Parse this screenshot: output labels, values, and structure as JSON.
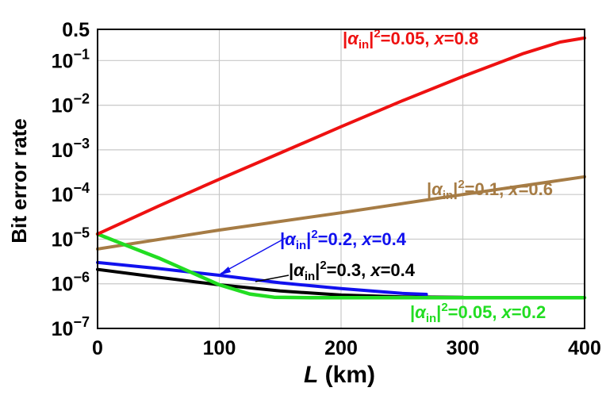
{
  "chart_data": {
    "type": "line",
    "title": "",
    "xlabel": "L (km)",
    "xlabel_parts": {
      "var": "L",
      "unit": " (km)"
    },
    "ylabel": "Bit error rate",
    "xlim": [
      0,
      400
    ],
    "ylim": [
      1e-07,
      0.5
    ],
    "yscale": "log",
    "grid": true,
    "xticks": [
      0,
      100,
      200,
      300,
      400
    ],
    "yticks": [
      {
        "value": 0.5,
        "label": "0.5"
      },
      {
        "value": 0.1,
        "base": "10",
        "exp": "−1"
      },
      {
        "value": 0.01,
        "base": "10",
        "exp": "−2"
      },
      {
        "value": 0.001,
        "base": "10",
        "exp": "−3"
      },
      {
        "value": 0.0001,
        "base": "10",
        "exp": "−4"
      },
      {
        "value": 1e-05,
        "base": "10",
        "exp": "−5"
      },
      {
        "value": 1e-06,
        "base": "10",
        "exp": "−6"
      },
      {
        "value": 1e-07,
        "base": "10",
        "exp": "−7"
      }
    ],
    "series": [
      {
        "name": "|αin|2=0.05, x=0.8",
        "label": {
          "val1": "0.05",
          "val2": "0.8"
        },
        "color": "#ee1111",
        "x": [
          0,
          50,
          100,
          150,
          200,
          250,
          300,
          350,
          380,
          400
        ],
        "y": [
          1.3e-05,
          5.5e-05,
          0.00022,
          0.00085,
          0.0033,
          0.0125,
          0.044,
          0.145,
          0.26,
          0.32
        ]
      },
      {
        "name": "|αin|2=0.1, x=0.6",
        "label": {
          "val1": "0.1",
          "val2": "0.6"
        },
        "color": "#a67c45",
        "x": [
          0,
          100,
          200,
          300,
          400
        ],
        "y": [
          6e-06,
          1.6e-05,
          3.9e-05,
          0.0001,
          0.00025
        ]
      },
      {
        "name": "|αin|2=0.2, x=0.4",
        "label": {
          "val1": "0.2",
          "val2": "0.4"
        },
        "color": "#1111ee",
        "x": [
          0,
          50,
          100,
          150,
          200,
          250,
          270
        ],
        "y": [
          3e-06,
          2.2e-06,
          1.55e-06,
          1.05e-06,
          7.8e-07,
          6.1e-07,
          5.8e-07
        ]
      },
      {
        "name": "|αin|2=0.3, x=0.4",
        "label": {
          "val1": "0.3",
          "val2": "0.4"
        },
        "color": "#000000",
        "x": [
          0,
          50,
          100,
          150,
          200,
          250,
          300
        ],
        "y": [
          2.1e-06,
          1.4e-06,
          9.5e-07,
          6.9e-07,
          5.6e-07,
          5.1e-07,
          5e-07
        ]
      },
      {
        "name": "|αin|2=0.05, x=0.2",
        "label": {
          "val1": "0.05",
          "val2": "0.2"
        },
        "color": "#22dd22",
        "x": [
          0,
          25,
          50,
          75,
          100,
          125,
          145,
          175,
          200,
          300,
          400
        ],
        "y": [
          1.3e-05,
          7e-06,
          3.8e-06,
          1.9e-06,
          9.5e-07,
          5.9e-07,
          5e-07,
          4.9e-07,
          4.9e-07,
          4.9e-07,
          4.9e-07
        ]
      }
    ]
  }
}
